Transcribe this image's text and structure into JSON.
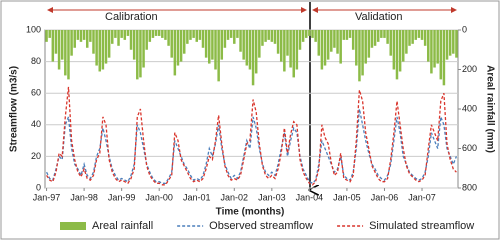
{
  "chart_data": {
    "type": "combo",
    "categories": [
      "Jan-97",
      null,
      null,
      null,
      null,
      null,
      null,
      null,
      null,
      null,
      null,
      null,
      "Jan-98",
      null,
      null,
      null,
      null,
      null,
      null,
      null,
      null,
      null,
      null,
      null,
      "Jan-99",
      null,
      null,
      null,
      null,
      null,
      null,
      null,
      null,
      null,
      null,
      null,
      "Jan-00",
      null,
      null,
      null,
      null,
      null,
      null,
      null,
      null,
      null,
      null,
      null,
      "Jan-01",
      null,
      null,
      null,
      null,
      null,
      null,
      null,
      null,
      null,
      null,
      null,
      "Jan-02",
      null,
      null,
      null,
      null,
      null,
      null,
      null,
      null,
      null,
      null,
      null,
      "Jan-03",
      null,
      null,
      null,
      null,
      null,
      null,
      null,
      null,
      null,
      null,
      null,
      "Jan-04",
      null,
      null,
      null,
      null,
      null,
      null,
      null,
      null,
      null,
      null,
      null,
      "Jan-05",
      null,
      null,
      null,
      null,
      null,
      null,
      null,
      null,
      null,
      null,
      null,
      "Jan-06",
      null,
      null,
      null,
      null,
      null,
      null,
      null,
      null,
      null,
      null,
      null,
      "Jan-07",
      null,
      null,
      null,
      null,
      null,
      null,
      null,
      null,
      null,
      null,
      null
    ],
    "x_label": "Time (months)",
    "y_label": "Streamflow (m3/s)",
    "y2_label": "Areal rainfall (mm)",
    "ylim": [
      0,
      100
    ],
    "yticks": [
      0,
      20,
      40,
      60,
      80,
      100
    ],
    "y2lim": [
      800,
      0
    ],
    "y2ticks": [
      0,
      200,
      400,
      600,
      800
    ],
    "grid": true,
    "annotations": [
      "Calibration",
      "Validation"
    ],
    "series": [
      {
        "name": "Areal rainfall",
        "type": "bar",
        "axis": "y2",
        "color": "#8cbb47",
        "values": [
          60,
          40,
          160,
          120,
          200,
          150,
          230,
          250,
          130,
          90,
          50,
          60,
          50,
          90,
          60,
          120,
          180,
          210,
          200,
          170,
          140,
          70,
          40,
          80,
          40,
          50,
          30,
          100,
          150,
          250,
          240,
          190,
          100,
          60,
          40,
          30,
          30,
          40,
          50,
          80,
          140,
          230,
          180,
          160,
          120,
          70,
          50,
          40,
          60,
          50,
          90,
          140,
          170,
          150,
          200,
          260,
          150,
          90,
          50,
          40,
          70,
          40,
          110,
          150,
          180,
          200,
          280,
          220,
          140,
          80,
          60,
          50,
          60,
          70,
          120,
          160,
          210,
          130,
          190,
          240,
          200,
          100,
          60,
          40,
          30,
          40,
          60,
          130,
          200,
          180,
          150,
          110,
          90,
          120,
          170,
          50,
          50,
          40,
          100,
          180,
          260,
          230,
          170,
          140,
          90,
          80,
          60,
          40,
          40,
          70,
          130,
          200,
          250,
          210,
          160,
          120,
          80,
          70,
          50,
          40,
          50,
          80,
          160,
          220,
          190,
          170,
          250,
          280,
          150,
          130,
          120,
          140
        ]
      },
      {
        "name": "Observed streamflow",
        "type": "line",
        "color": "#4a7ebb",
        "values": [
          10,
          6,
          5,
          12,
          20,
          18,
          40,
          45,
          25,
          15,
          12,
          8,
          15,
          8,
          6,
          10,
          20,
          25,
          38,
          30,
          20,
          12,
          8,
          5,
          6,
          5,
          4,
          8,
          15,
          40,
          35,
          25,
          15,
          10,
          6,
          4,
          4,
          3,
          3,
          6,
          10,
          30,
          25,
          20,
          15,
          12,
          8,
          5,
          6,
          5,
          8,
          15,
          25,
          20,
          28,
          40,
          25,
          15,
          10,
          6,
          8,
          6,
          10,
          20,
          30,
          25,
          45,
          38,
          25,
          15,
          10,
          8,
          10,
          8,
          15,
          25,
          35,
          20,
          30,
          38,
          35,
          20,
          12,
          8,
          4,
          3,
          5,
          15,
          30,
          25,
          20,
          15,
          10,
          12,
          20,
          8,
          6,
          5,
          10,
          25,
          50,
          40,
          30,
          22,
          15,
          12,
          8,
          6,
          5,
          8,
          15,
          30,
          45,
          35,
          20,
          15,
          10,
          8,
          6,
          5,
          6,
          10,
          20,
          35,
          30,
          25,
          45,
          40,
          25,
          20,
          15,
          20
        ]
      },
      {
        "name": "Simulated streamflow",
        "type": "line",
        "color": "#d9342b",
        "values": [
          8,
          5,
          4,
          10,
          22,
          20,
          45,
          64,
          30,
          18,
          10,
          7,
          12,
          6,
          5,
          8,
          18,
          22,
          45,
          40,
          18,
          10,
          6,
          4,
          5,
          4,
          3,
          6,
          12,
          45,
          50,
          30,
          14,
          8,
          5,
          3,
          3,
          2,
          2,
          5,
          8,
          35,
          30,
          18,
          14,
          10,
          6,
          4,
          5,
          4,
          6,
          12,
          20,
          18,
          30,
          46,
          28,
          14,
          8,
          5,
          6,
          5,
          8,
          18,
          28,
          30,
          56,
          48,
          28,
          14,
          8,
          6,
          8,
          6,
          12,
          22,
          38,
          22,
          34,
          42,
          40,
          18,
          10,
          6,
          3,
          2,
          4,
          12,
          40,
          32,
          28,
          16,
          8,
          10,
          22,
          6,
          5,
          4,
          8,
          30,
          62,
          55,
          35,
          25,
          14,
          10,
          6,
          4,
          4,
          6,
          18,
          35,
          55,
          40,
          25,
          14,
          9,
          7,
          5,
          4,
          5,
          8,
          25,
          40,
          35,
          30,
          55,
          60,
          28,
          18,
          12,
          10
        ]
      }
    ]
  }
}
